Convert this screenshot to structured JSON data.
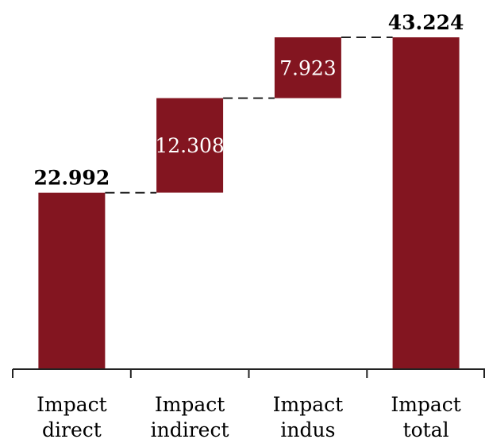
{
  "chart_data": {
    "type": "bar",
    "subtype": "waterfall",
    "categories": [
      [
        "Impact",
        "direct"
      ],
      [
        "Impact",
        "indirect"
      ],
      [
        "Impact",
        "indus"
      ],
      [
        "Impact",
        "total"
      ]
    ],
    "values": [
      22.992,
      12.308,
      7.923,
      43.224
    ],
    "value_labels": [
      "22.992",
      "12.308",
      "7.923",
      "43.224"
    ],
    "label_position": [
      "outside",
      "inside",
      "inside",
      "outside"
    ],
    "steps": [
      "absolute",
      "relative",
      "relative",
      "total"
    ],
    "ylim": [
      0,
      44
    ],
    "grid": false,
    "legend": "none",
    "colors": {
      "bar": "#831520",
      "axis": "#222222",
      "connector": "#222222"
    }
  }
}
